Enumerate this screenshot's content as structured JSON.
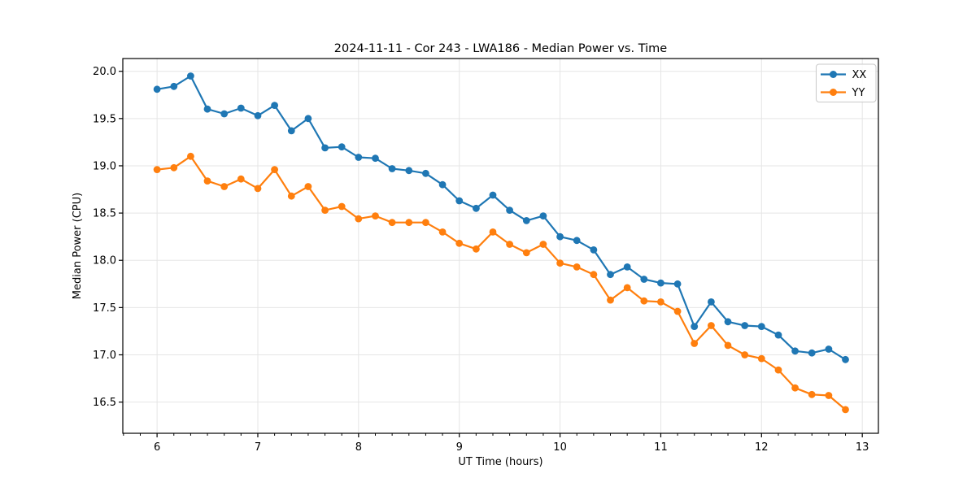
{
  "chart_data": {
    "type": "line",
    "title": "2024-11-11 - Cor 243 - LWA186 - Median Power vs. Time",
    "xlabel": "UT Time (hours)",
    "ylabel": "Median Power (CPU)",
    "x": [
      6.0,
      6.1667,
      6.3333,
      6.5,
      6.6667,
      6.8333,
      7.0,
      7.1667,
      7.3333,
      7.5,
      7.6667,
      7.8333,
      8.0,
      8.1667,
      8.3333,
      8.5,
      8.6667,
      8.8333,
      9.0,
      9.1667,
      9.3333,
      9.5,
      9.6667,
      9.8333,
      10.0,
      10.1667,
      10.3333,
      10.5,
      10.6667,
      10.8333,
      11.0,
      11.1667,
      11.3333,
      11.5,
      11.6667,
      11.8333,
      12.0,
      12.1667,
      12.3333,
      12.5,
      12.6667,
      12.8333
    ],
    "series": [
      {
        "name": "XX",
        "color": "#1f77b4",
        "values": [
          19.81,
          19.84,
          19.95,
          19.6,
          19.55,
          19.61,
          19.53,
          19.64,
          19.37,
          19.5,
          19.19,
          19.2,
          19.09,
          19.08,
          18.97,
          18.95,
          18.92,
          18.8,
          18.63,
          18.55,
          18.69,
          18.53,
          18.42,
          18.47,
          18.25,
          18.21,
          18.11,
          17.85,
          17.93,
          17.8,
          17.76,
          17.75,
          17.3,
          17.56,
          17.35,
          17.31,
          17.3,
          17.21,
          17.04,
          17.02,
          17.06,
          16.95
        ]
      },
      {
        "name": "YY",
        "color": "#ff7f0e",
        "values": [
          18.96,
          18.98,
          19.1,
          18.84,
          18.78,
          18.86,
          18.76,
          18.96,
          18.68,
          18.78,
          18.53,
          18.57,
          18.44,
          18.47,
          18.4,
          18.4,
          18.4,
          18.3,
          18.18,
          18.12,
          18.3,
          18.17,
          18.08,
          18.17,
          17.97,
          17.93,
          17.85,
          17.58,
          17.71,
          17.57,
          17.56,
          17.46,
          17.12,
          17.31,
          17.1,
          17.0,
          16.96,
          16.84,
          16.65,
          16.58,
          16.57,
          16.42
        ]
      }
    ],
    "xlim": [
      5.66,
      13.16
    ],
    "ylim": [
      16.17,
      20.135
    ],
    "xticks": [
      6,
      7,
      8,
      9,
      10,
      11,
      12,
      13
    ],
    "yticks": [
      16.5,
      17.0,
      17.5,
      18.0,
      18.5,
      19.0,
      19.5,
      20.0
    ],
    "x_minor_tick_step": 0.166667,
    "grid": true,
    "legend": {
      "position": "upper right",
      "entries": [
        "XX",
        "YY"
      ]
    }
  }
}
